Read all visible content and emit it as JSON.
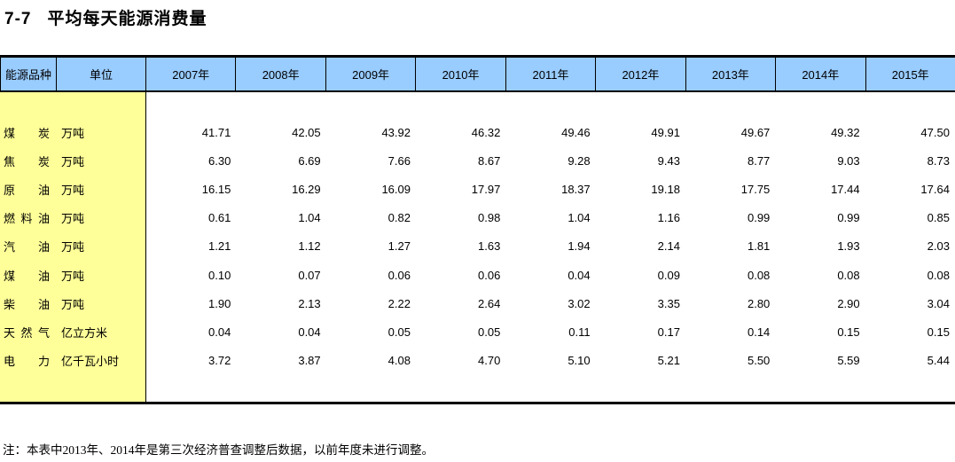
{
  "title": {
    "number": "7-7",
    "text": "平均每天能源消费量"
  },
  "chart_data": {
    "type": "table",
    "title": "7-7 平均每天能源消费量",
    "header": {
      "item_col": "能源品种",
      "unit_col": "单位",
      "year_cols": [
        "2007年",
        "2008年",
        "2009年",
        "2010年",
        "2011年",
        "2012年",
        "2013年",
        "2014年",
        "2015年"
      ]
    },
    "rows": [
      {
        "name": "煤炭",
        "unit": "万吨",
        "values": [
          41.71,
          42.05,
          43.92,
          46.32,
          49.46,
          49.91,
          49.67,
          49.32,
          47.5
        ]
      },
      {
        "name": "焦炭",
        "unit": "万吨",
        "values": [
          6.3,
          6.69,
          7.66,
          8.67,
          9.28,
          9.43,
          8.77,
          9.03,
          8.73
        ]
      },
      {
        "name": "原油",
        "unit": "万吨",
        "values": [
          16.15,
          16.29,
          16.09,
          17.97,
          18.37,
          19.18,
          17.75,
          17.44,
          17.64
        ]
      },
      {
        "name": "燃料油",
        "unit": "万吨",
        "values": [
          0.61,
          1.04,
          0.82,
          0.98,
          1.04,
          1.16,
          0.99,
          0.99,
          0.85
        ]
      },
      {
        "name": "汽油",
        "unit": "万吨",
        "values": [
          1.21,
          1.12,
          1.27,
          1.63,
          1.94,
          2.14,
          1.81,
          1.93,
          2.03
        ]
      },
      {
        "name": "煤油",
        "unit": "万吨",
        "values": [
          0.1,
          0.07,
          0.06,
          0.06,
          0.04,
          0.09,
          0.08,
          0.08,
          0.08
        ]
      },
      {
        "name": "柴油",
        "unit": "万吨",
        "values": [
          1.9,
          2.13,
          2.22,
          2.64,
          3.02,
          3.35,
          2.8,
          2.9,
          3.04
        ]
      },
      {
        "name": "天然气",
        "unit": "亿立方米",
        "values": [
          0.04,
          0.04,
          0.05,
          0.05,
          0.11,
          0.17,
          0.14,
          0.15,
          0.15
        ]
      },
      {
        "name": "电力",
        "unit": "亿千瓦小时",
        "values": [
          3.72,
          3.87,
          4.08,
          4.7,
          5.1,
          5.21,
          5.5,
          5.59,
          5.44
        ]
      }
    ],
    "value_decimals": 2,
    "layout": {
      "grid": "header-only-vertical-lines",
      "legend_position": "none"
    }
  },
  "note": "注：本表中2013年、2014年是第三次经济普查调整后数据，以前年度未进行调整。",
  "colors": {
    "header_bg": "#99CCFF",
    "label_bg": "#FFFF99",
    "border": "#000000",
    "text": "#000000",
    "background": "#FFFFFF"
  }
}
